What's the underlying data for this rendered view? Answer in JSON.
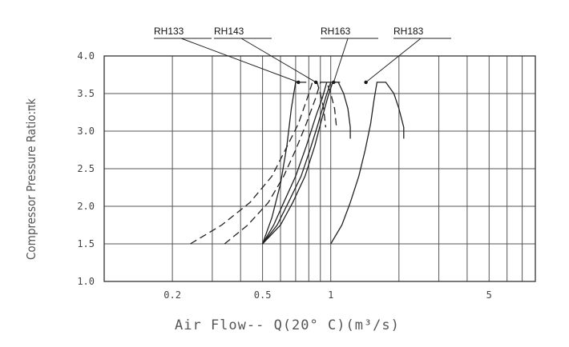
{
  "chart_data": {
    "type": "line",
    "title": "",
    "xlabel": "Air Flow--      Q(20° C)(m³/s)",
    "ylabel": "Compressor Pressure Ratio:πk",
    "x_scale": "log",
    "xlim": [
      0.1,
      8
    ],
    "ylim": [
      1.0,
      4.0
    ],
    "x_ticks": [
      {
        "value": 0.2,
        "label": "0.2"
      },
      {
        "value": 0.5,
        "label": "0.5"
      },
      {
        "value": 1,
        "label": "1"
      },
      {
        "value": 5,
        "label": "5"
      }
    ],
    "y_ticks": [
      {
        "value": 1.0,
        "label": "1.0"
      },
      {
        "value": 1.5,
        "label": "1.5"
      },
      {
        "value": 2.0,
        "label": "2.0"
      },
      {
        "value": 2.5,
        "label": "2.5"
      },
      {
        "value": 3.0,
        "label": "3.0"
      },
      {
        "value": 3.5,
        "label": "3.5"
      },
      {
        "value": 4.0,
        "label": "4.0"
      }
    ],
    "grid": true,
    "grid_x": [
      0.2,
      0.3,
      0.4,
      0.5,
      0.6,
      0.7,
      0.8,
      0.9,
      1,
      2,
      3,
      4,
      5,
      6,
      7,
      8
    ],
    "grid_y": [
      1.0,
      1.5,
      2.0,
      2.5,
      3.0,
      3.5,
      4.0
    ],
    "series": [
      {
        "name": "RH133",
        "style": "dashed",
        "label_x": 0.72,
        "points": [
          [
            0.24,
            1.5
          ],
          [
            0.33,
            1.75
          ],
          [
            0.44,
            2.05
          ],
          [
            0.55,
            2.4
          ],
          [
            0.63,
            2.75
          ],
          [
            0.72,
            3.1
          ],
          [
            0.79,
            3.45
          ],
          [
            0.83,
            3.65
          ],
          [
            0.87,
            3.65
          ],
          [
            0.9,
            3.5
          ],
          [
            0.93,
            3.3
          ],
          [
            0.95,
            3.05
          ]
        ]
      },
      {
        "name": "RH143",
        "style": "dashed",
        "label_x": 0.86,
        "points": [
          [
            0.34,
            1.5
          ],
          [
            0.43,
            1.75
          ],
          [
            0.53,
            2.05
          ],
          [
            0.62,
            2.4
          ],
          [
            0.7,
            2.75
          ],
          [
            0.78,
            3.1
          ],
          [
            0.86,
            3.45
          ],
          [
            0.9,
            3.65
          ],
          [
            0.96,
            3.65
          ],
          [
            1.0,
            3.5
          ],
          [
            1.04,
            3.3
          ],
          [
            1.06,
            3.05
          ]
        ]
      },
      {
        "name": "RH163",
        "style": "solid",
        "label_x": 1.03,
        "points": [
          [
            0.5,
            1.5
          ],
          [
            0.58,
            1.75
          ],
          [
            0.65,
            2.05
          ],
          [
            0.74,
            2.4
          ],
          [
            0.81,
            2.75
          ],
          [
            0.88,
            3.1
          ],
          [
            0.95,
            3.45
          ],
          [
            1.0,
            3.65
          ],
          [
            1.08,
            3.65
          ],
          [
            1.14,
            3.5
          ],
          [
            1.19,
            3.3
          ],
          [
            1.22,
            3.05
          ],
          [
            1.22,
            2.9
          ]
        ]
      },
      {
        "name": "RH183",
        "style": "solid",
        "label_x": 1.43,
        "points": [
          [
            1.0,
            1.5
          ],
          [
            1.12,
            1.75
          ],
          [
            1.22,
            2.05
          ],
          [
            1.33,
            2.4
          ],
          [
            1.42,
            2.75
          ],
          [
            1.5,
            3.1
          ],
          [
            1.55,
            3.4
          ],
          [
            1.6,
            3.65
          ],
          [
            1.75,
            3.65
          ],
          [
            1.9,
            3.5
          ],
          [
            2.0,
            3.3
          ],
          [
            2.1,
            3.05
          ],
          [
            2.1,
            2.9
          ]
        ]
      }
    ],
    "extra_curves": [
      {
        "style": "solid",
        "points": [
          [
            0.5,
            1.5
          ],
          [
            0.55,
            1.85
          ],
          [
            0.6,
            2.3
          ],
          [
            0.64,
            2.8
          ],
          [
            0.67,
            3.3
          ],
          [
            0.7,
            3.65
          ],
          [
            0.78,
            3.65
          ]
        ]
      },
      {
        "style": "solid",
        "points": [
          [
            0.5,
            1.5
          ],
          [
            0.56,
            1.75
          ],
          [
            0.62,
            2.05
          ],
          [
            0.7,
            2.4
          ],
          [
            0.78,
            2.8
          ],
          [
            0.86,
            3.2
          ],
          [
            0.92,
            3.45
          ],
          [
            0.96,
            3.65
          ],
          [
            1.0,
            3.65
          ]
        ]
      },
      {
        "style": "solid",
        "points": [
          [
            0.5,
            1.5
          ],
          [
            0.6,
            1.75
          ],
          [
            0.68,
            2.05
          ],
          [
            0.77,
            2.4
          ],
          [
            0.85,
            2.8
          ],
          [
            0.92,
            3.2
          ],
          [
            0.97,
            3.45
          ],
          [
            1.02,
            3.65
          ],
          [
            1.1,
            3.65
          ]
        ]
      }
    ]
  }
}
